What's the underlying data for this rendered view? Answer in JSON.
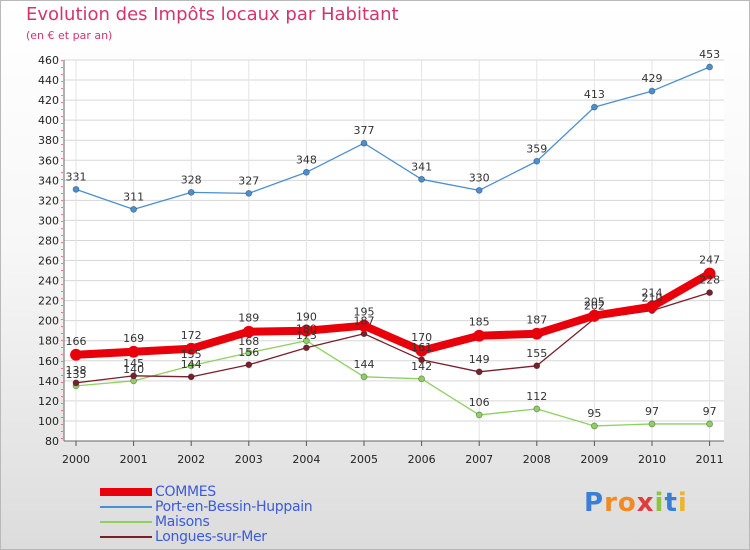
{
  "title": "Evolution des Impôts locaux par Habitant",
  "subtitle": "(en € et par an)",
  "brand": {
    "letters": [
      {
        "ch": "P",
        "color": "#3a7fd5"
      },
      {
        "ch": "r",
        "color": "#f08a24"
      },
      {
        "ch": "o",
        "color": "#f08a24"
      },
      {
        "ch": "x",
        "color": "#e23b3b"
      },
      {
        "ch": "i",
        "color": "#8cc63f"
      },
      {
        "ch": "t",
        "color": "#3a7fd5"
      },
      {
        "ch": "i",
        "color": "#f0b429"
      }
    ]
  },
  "chart_data": {
    "type": "line",
    "x": [
      "2000",
      "2001",
      "2002",
      "2003",
      "2004",
      "2005",
      "2006",
      "2007",
      "2008",
      "2009",
      "2010",
      "2011"
    ],
    "ylim": [
      80,
      460
    ],
    "yticks": [
      "80",
      "100",
      "120",
      "140",
      "160",
      "180",
      "200",
      "220",
      "240",
      "260",
      "280",
      "300",
      "320",
      "340",
      "360",
      "380",
      "400",
      "420",
      "440",
      "460"
    ],
    "grid": true,
    "legend_position": "bottom-left",
    "series": [
      {
        "name": "COMMES",
        "color": "#e8000b",
        "values": [
          166,
          169,
          172,
          189,
          190,
          195,
          170,
          185,
          187,
          205,
          214,
          247
        ]
      },
      {
        "name": "Port-en-Bessin-Huppain",
        "color": "#4a90d0",
        "values": [
          331,
          311,
          328,
          327,
          348,
          377,
          341,
          330,
          359,
          413,
          429,
          453
        ]
      },
      {
        "name": "Maisons",
        "color": "#8ed160",
        "values": [
          135,
          140,
          155,
          168,
          180,
          144,
          142,
          106,
          112,
          95,
          97,
          97
        ]
      },
      {
        "name": "Longues-sur-Mer",
        "color": "#7a1f2b",
        "values": [
          138,
          145,
          144,
          156,
          173,
          187,
          161,
          149,
          155,
          202,
          210,
          228
        ]
      }
    ]
  }
}
